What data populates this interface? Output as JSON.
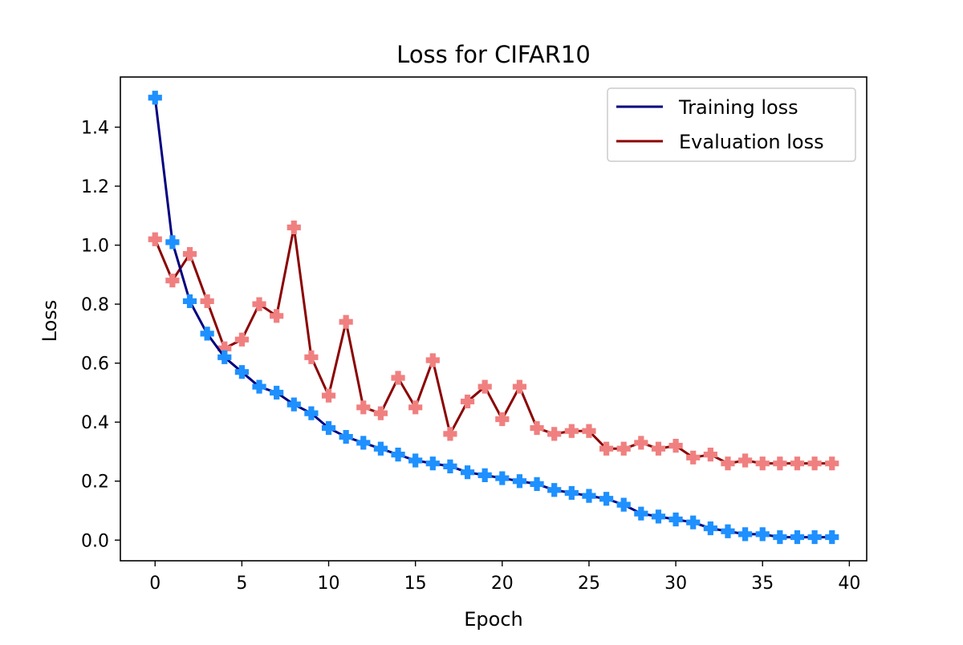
{
  "chart_data": {
    "type": "line",
    "title": "Loss for CIFAR10",
    "xlabel": "Epoch",
    "ylabel": "Loss",
    "xlim": [
      -2,
      41
    ],
    "ylim": [
      -0.07,
      1.57
    ],
    "xticks": [
      0,
      5,
      10,
      15,
      20,
      25,
      30,
      35,
      40
    ],
    "yticks": [
      0.0,
      0.2,
      0.4,
      0.6,
      0.8,
      1.0,
      1.2,
      1.4
    ],
    "ytick_labels": [
      "0.0",
      "0.2",
      "0.4",
      "0.6",
      "0.8",
      "1.0",
      "1.2",
      "1.4"
    ],
    "grid": false,
    "legend_position": "top-right",
    "x": [
      0,
      1,
      2,
      3,
      4,
      5,
      6,
      7,
      8,
      9,
      10,
      11,
      12,
      13,
      14,
      15,
      16,
      17,
      18,
      19,
      20,
      21,
      22,
      23,
      24,
      25,
      26,
      27,
      28,
      29,
      30,
      31,
      32,
      33,
      34,
      35,
      36,
      37,
      38,
      39
    ],
    "series": [
      {
        "name": "Training loss",
        "line_color": "#000080",
        "marker_color": "#1e90ff",
        "marker": "P",
        "values": [
          1.5,
          1.01,
          0.81,
          0.7,
          0.62,
          0.57,
          0.52,
          0.5,
          0.46,
          0.43,
          0.38,
          0.35,
          0.33,
          0.31,
          0.29,
          0.27,
          0.26,
          0.25,
          0.23,
          0.22,
          0.21,
          0.2,
          0.19,
          0.17,
          0.16,
          0.15,
          0.14,
          0.12,
          0.09,
          0.08,
          0.07,
          0.06,
          0.04,
          0.03,
          0.02,
          0.02,
          0.01,
          0.01,
          0.01,
          0.01
        ]
      },
      {
        "name": "Evaluation loss",
        "line_color": "#8b0000",
        "marker_color": "#f08080",
        "marker": "P",
        "values": [
          1.02,
          0.88,
          0.97,
          0.81,
          0.65,
          0.68,
          0.8,
          0.76,
          1.06,
          0.62,
          0.49,
          0.74,
          0.45,
          0.43,
          0.55,
          0.45,
          0.61,
          0.36,
          0.47,
          0.52,
          0.41,
          0.52,
          0.38,
          0.36,
          0.37,
          0.37,
          0.31,
          0.31,
          0.33,
          0.31,
          0.32,
          0.28,
          0.29,
          0.26,
          0.27,
          0.26,
          0.26,
          0.26,
          0.26,
          0.26
        ]
      }
    ]
  }
}
